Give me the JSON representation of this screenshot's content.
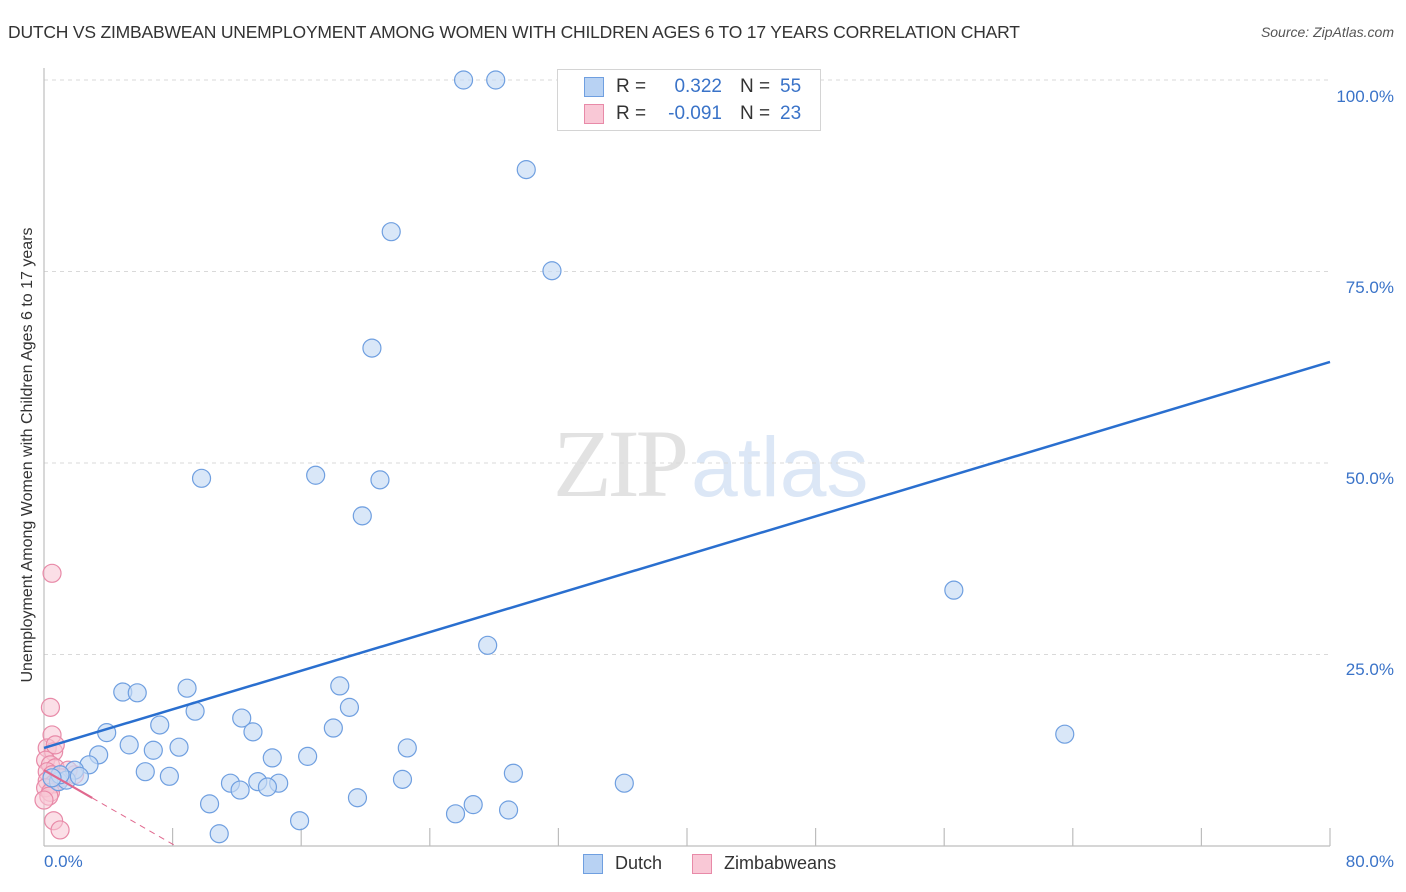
{
  "header": {
    "title": "DUTCH VS ZIMBABWEAN UNEMPLOYMENT AMONG WOMEN WITH CHILDREN AGES 6 TO 17 YEARS CORRELATION CHART",
    "source": "Source: ZipAtlas.com"
  },
  "watermark": {
    "zip": "ZIP",
    "atlas": "atlas"
  },
  "axes": {
    "ylabel": "Unemployment Among Women with Children Ages 6 to 17 years",
    "y_ticks": [
      "100.0%",
      "75.0%",
      "50.0%",
      "25.0%"
    ],
    "x_min_label": "0.0%",
    "x_max_label": "80.0%"
  },
  "legend": {
    "rows": [
      {
        "r_label": "R =",
        "r_value": "0.322",
        "n_label": "N =",
        "n_value": "55",
        "color": "#a9c8f0",
        "border": "#6f9fe0"
      },
      {
        "r_label": "R =",
        "r_value": "-0.091",
        "n_label": "N =",
        "n_value": "23",
        "color": "#f7bfd0",
        "border": "#e88aa8"
      }
    ],
    "series": [
      {
        "label": "Dutch",
        "color": "#b8d2f3",
        "border": "#6f9fe0"
      },
      {
        "label": "Zimbabweans",
        "color": "#f9c8d6",
        "border": "#e88aa8"
      }
    ]
  },
  "colors": {
    "dutch_fill": "#c5daf5",
    "dutch_stroke": "#6f9fe0",
    "dutch_line": "#2a6fcf",
    "zim_fill": "#f8c4d3",
    "zim_stroke": "#e88aa8",
    "zim_line": "#e0688e",
    "axis_label": "#3a73c8",
    "grid": "#d9d9d9"
  },
  "chart_data": {
    "type": "scatter",
    "title": "DUTCH VS ZIMBABWEAN UNEMPLOYMENT AMONG WOMEN WITH CHILDREN AGES 6 TO 17 YEARS CORRELATION CHART",
    "xlabel": "",
    "ylabel": "Unemployment Among Women with Children Ages 6 to 17 years",
    "xlim": [
      0,
      80
    ],
    "ylim": [
      0,
      100
    ],
    "x_tick_labels": [
      "0.0%",
      "80.0%"
    ],
    "y_tick_labels": [
      "25.0%",
      "50.0%",
      "75.0%",
      "100.0%"
    ],
    "grid": "horizontal dashed",
    "legend_position": "top-center and bottom-center",
    "series": [
      {
        "name": "Dutch",
        "R": 0.322,
        "N": 55,
        "trendline": {
          "x": [
            0,
            80
          ],
          "y": [
            12.8,
            63.2
          ]
        },
        "points": [
          [
            26.1,
            100
          ],
          [
            28.1,
            100
          ],
          [
            30.0,
            88.3
          ],
          [
            21.6,
            80.2
          ],
          [
            31.6,
            75.1
          ],
          [
            20.4,
            65.0
          ],
          [
            9.8,
            48.0
          ],
          [
            16.9,
            48.4
          ],
          [
            20.9,
            47.8
          ],
          [
            19.8,
            43.1
          ],
          [
            56.6,
            33.4
          ],
          [
            27.6,
            26.2
          ],
          [
            4.9,
            20.1
          ],
          [
            5.8,
            20.0
          ],
          [
            8.9,
            20.6
          ],
          [
            18.4,
            20.9
          ],
          [
            9.4,
            17.6
          ],
          [
            19.0,
            18.1
          ],
          [
            12.3,
            16.7
          ],
          [
            7.2,
            15.8
          ],
          [
            18.0,
            15.4
          ],
          [
            3.9,
            14.8
          ],
          [
            13.0,
            14.9
          ],
          [
            5.3,
            13.2
          ],
          [
            6.8,
            12.5
          ],
          [
            8.4,
            12.9
          ],
          [
            22.6,
            12.8
          ],
          [
            3.4,
            11.9
          ],
          [
            14.2,
            11.5
          ],
          [
            16.4,
            11.7
          ],
          [
            63.5,
            14.6
          ],
          [
            2.8,
            10.6
          ],
          [
            1.9,
            9.9
          ],
          [
            6.3,
            9.7
          ],
          [
            7.8,
            9.1
          ],
          [
            29.2,
            9.5
          ],
          [
            22.3,
            8.7
          ],
          [
            11.6,
            8.2
          ],
          [
            13.3,
            8.4
          ],
          [
            14.6,
            8.2
          ],
          [
            36.1,
            8.2
          ],
          [
            12.2,
            7.3
          ],
          [
            13.9,
            7.7
          ],
          [
            0.9,
            8.4
          ],
          [
            1.4,
            8.6
          ],
          [
            10.3,
            5.5
          ],
          [
            19.5,
            6.3
          ],
          [
            26.7,
            5.4
          ],
          [
            25.6,
            4.2
          ],
          [
            28.9,
            4.7
          ],
          [
            15.9,
            3.3
          ],
          [
            10.9,
            1.6
          ],
          [
            1.0,
            9.3
          ],
          [
            0.5,
            8.9
          ],
          [
            2.2,
            9.1
          ]
        ]
      },
      {
        "name": "Zimbabweans",
        "R": -0.091,
        "N": 23,
        "trendline": {
          "x": [
            0,
            8.2
          ],
          "y": [
            9.9,
            0
          ]
        },
        "points": [
          [
            0.5,
            35.6
          ],
          [
            0.4,
            18.1
          ],
          [
            0.5,
            14.5
          ],
          [
            0.2,
            12.8
          ],
          [
            0.6,
            12.3
          ],
          [
            0.1,
            11.2
          ],
          [
            0.4,
            10.6
          ],
          [
            0.7,
            10.2
          ],
          [
            0.2,
            9.7
          ],
          [
            0.5,
            9.3
          ],
          [
            0.9,
            8.9
          ],
          [
            0.2,
            8.5
          ],
          [
            0.6,
            8.1
          ],
          [
            0.1,
            7.6
          ],
          [
            0.4,
            7.0
          ],
          [
            0.3,
            6.5
          ],
          [
            1.9,
            9.3
          ],
          [
            1.5,
            9.9
          ],
          [
            1.1,
            8.9
          ],
          [
            0.0,
            6.0
          ],
          [
            0.6,
            3.3
          ],
          [
            1.0,
            2.1
          ],
          [
            0.7,
            13.2
          ]
        ]
      }
    ]
  }
}
